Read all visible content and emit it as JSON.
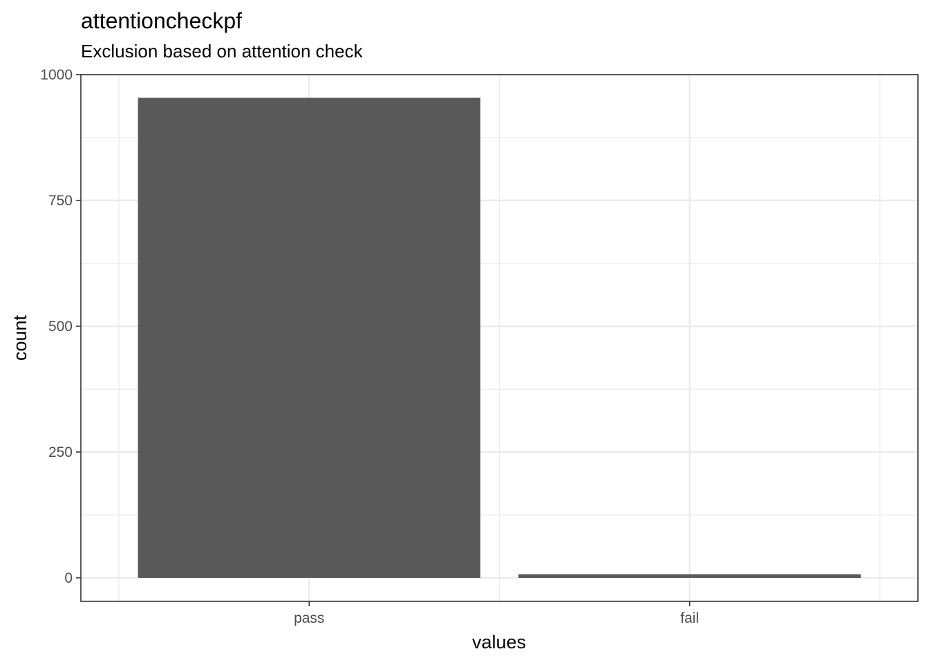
{
  "chart_data": {
    "type": "bar",
    "title": "attentioncheckpf",
    "subtitle": "Exclusion based on attention check",
    "xlabel": "values",
    "ylabel": "count",
    "categories": [
      "pass",
      "fail"
    ],
    "values": [
      954,
      7
    ],
    "ylim": [
      0,
      1000
    ],
    "yticks": [
      0,
      250,
      500,
      750,
      1000
    ],
    "grid": true,
    "legend": "none",
    "colors": {
      "bar": "#595959",
      "grid": "#ebebeb",
      "panel_border": "#333333",
      "tick_text": "#4d4d4d"
    }
  }
}
